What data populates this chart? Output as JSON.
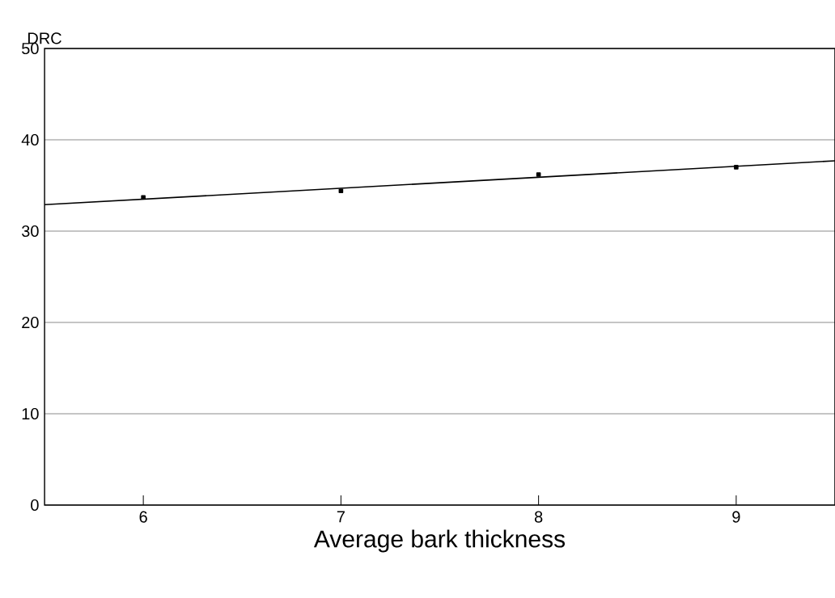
{
  "chart_data": {
    "type": "scatter",
    "xlabel": "Average bark thickness",
    "ylabel": "DRC",
    "xlim": [
      5.5,
      9.5
    ],
    "ylim": [
      0,
      50
    ],
    "xticks": [
      6,
      7,
      8,
      9
    ],
    "yticks": [
      0,
      10,
      20,
      30,
      40,
      50
    ],
    "grid": "y",
    "series": [
      {
        "x": [
          6,
          7,
          8,
          9
        ],
        "values": [
          33.7,
          34.4,
          36.2,
          37.0
        ],
        "color": "#000000",
        "marker": "square"
      },
      {
        "type": "line",
        "x": [
          5.5,
          9.5
        ],
        "values": [
          32.9,
          37.7
        ],
        "color": "#000000",
        "marker": "none"
      }
    ]
  }
}
